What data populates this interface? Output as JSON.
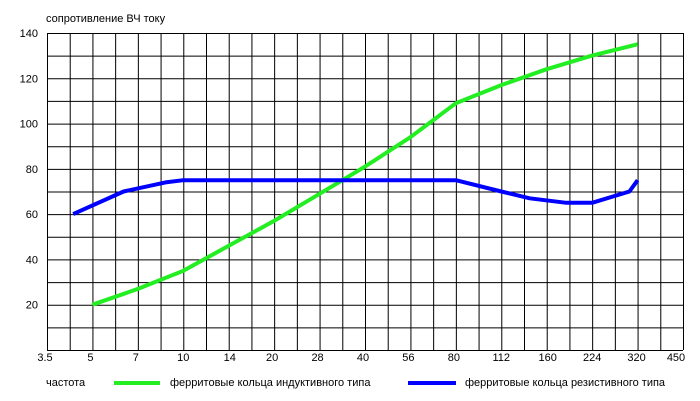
{
  "chart_data": {
    "type": "line",
    "ylabel": "сопротивление ВЧ току",
    "xlabel": "частота",
    "y_ticks": [
      "20",
      "40",
      "60",
      "80",
      "100",
      "120",
      "140"
    ],
    "ylim": [
      0,
      140
    ],
    "x_ticks": [
      "3.5",
      "5",
      "7",
      "10",
      "14",
      "20",
      "28",
      "40",
      "56",
      "80",
      "112",
      "160",
      "224",
      "320",
      "450"
    ],
    "grid": true,
    "legend_position": "bottom",
    "series": [
      {
        "name": "ферритовые кольца индуктивного типа",
        "color": "#22ee22",
        "x": [
          5,
          7,
          10,
          14,
          20,
          28,
          40,
          56,
          80,
          112,
          160,
          224,
          320
        ],
        "y": [
          20,
          27,
          35,
          46,
          57,
          69,
          81,
          94,
          109,
          117,
          124,
          130,
          135
        ]
      },
      {
        "name": "ферритовые кольца резистивного типа",
        "color": "#0000ff",
        "x": [
          4.3,
          6.3,
          8.7,
          10,
          14,
          20,
          28,
          40,
          56,
          80,
          112,
          140,
          185,
          224,
          300,
          320
        ],
        "y": [
          60,
          70,
          74,
          75,
          75,
          75,
          75,
          75,
          75,
          75,
          70,
          67,
          65,
          65,
          70,
          75
        ]
      }
    ]
  }
}
